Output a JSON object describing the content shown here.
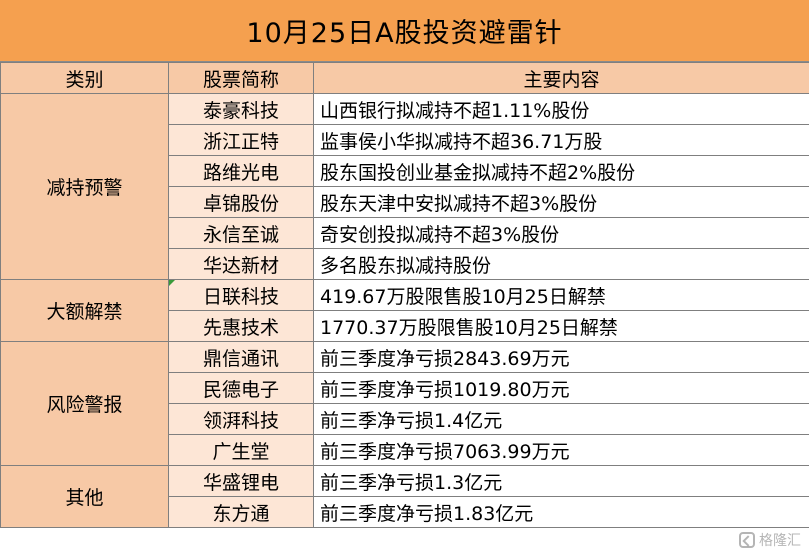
{
  "title": "10月25日A股投资避雷针",
  "headers": {
    "category": "类别",
    "stock": "股票简称",
    "content": "主要内容"
  },
  "groups": [
    {
      "category": "减持预警",
      "rows": [
        {
          "stock": "泰豪科技",
          "content": "山西银行拟减持不超1.11%股份"
        },
        {
          "stock": "浙江正特",
          "content": "监事侯小华拟减持不超36.71万股"
        },
        {
          "stock": "路维光电",
          "content": "股东国投创业基金拟减持不超2%股份"
        },
        {
          "stock": "卓锦股份",
          "content": "股东天津中安拟减持不超3%股份"
        },
        {
          "stock": "永信至诚",
          "content": "奇安创投拟减持不超3%股份"
        },
        {
          "stock": "华达新材",
          "content": "多名股东拟减持股份"
        }
      ]
    },
    {
      "category": "大额解禁",
      "rows": [
        {
          "stock": "日联科技",
          "content": "419.67万股限售股10月25日解禁"
        },
        {
          "stock": "先惠技术",
          "content": "1770.37万股限售股10月25日解禁"
        }
      ]
    },
    {
      "category": "风险警报",
      "rows": [
        {
          "stock": "鼎信通讯",
          "content": "前三季度净亏损2843.69万元"
        },
        {
          "stock": "民德电子",
          "content": "前三季度净亏损1019.80万元"
        },
        {
          "stock": "领湃科技",
          "content": "前三季净亏损1.4亿元"
        },
        {
          "stock": "广生堂",
          "content": "前三季度净亏损7063.99万元"
        }
      ]
    },
    {
      "category": "其他",
      "rows": [
        {
          "stock": "华盛锂电",
          "content": "前三季净亏损1.3亿元"
        },
        {
          "stock": "东方通",
          "content": "前三季度净亏损1.83亿元"
        }
      ]
    }
  ],
  "watermark": "格隆汇",
  "colors": {
    "title_bg": "#F5A04F",
    "category_bg": "#F7C9A6",
    "stock_bg": "#FDE6D6",
    "content_bg": "#FFFFFF"
  }
}
